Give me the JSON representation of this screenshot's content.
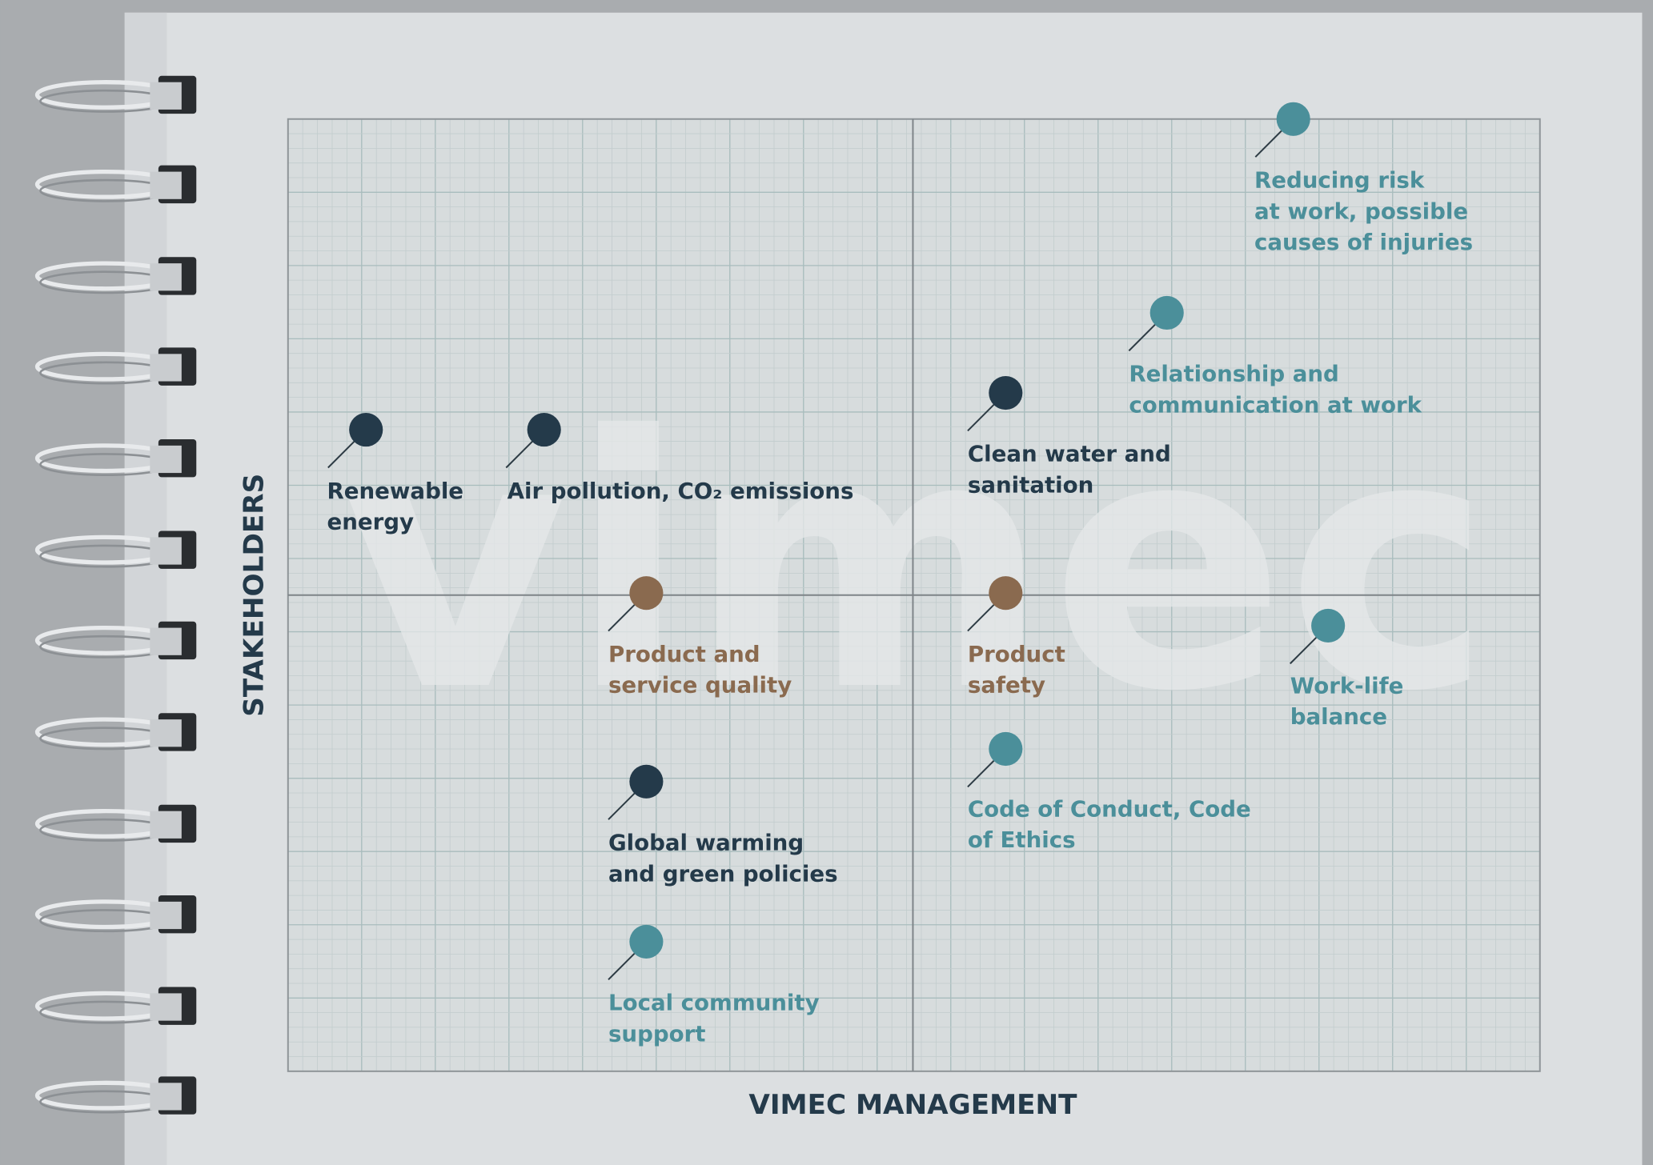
{
  "watermark": "vimec",
  "x_axis_label": "VIMEC MANAGEMENT",
  "y_axis_label": "STAKEHOLDERS",
  "nodes": [
    {
      "lines": [
        "Renewable",
        "energy"
      ],
      "color": "#243a4a"
    },
    {
      "lines": [
        "Air pollution, CO₂ emissions"
      ],
      "color": "#243a4a"
    },
    {
      "lines": [
        "Clean water and",
        "sanitation"
      ],
      "color": "#243a4a"
    },
    {
      "lines": [
        "Reducing risk",
        "at work, possible",
        "causes of injuries"
      ],
      "color": "#4b8f9a"
    },
    {
      "lines": [
        "Relationship and",
        "communication at work"
      ],
      "color": "#4b8f9a"
    },
    {
      "lines": [
        "Product and",
        "service quality"
      ],
      "color": "#8a6a4f"
    },
    {
      "lines": [
        "Product",
        "safety"
      ],
      "color": "#8a6a4f"
    },
    {
      "lines": [
        "Work-life",
        "balance"
      ],
      "color": "#4b8f9a"
    },
    {
      "lines": [
        "Code of Conduct, Code",
        "of Ethics"
      ],
      "color": "#4b8f9a"
    },
    {
      "lines": [
        "Global warming",
        "and green policies"
      ],
      "color": "#243a4a"
    },
    {
      "lines": [
        "Local community",
        "support"
      ],
      "color": "#4b8f9a"
    }
  ]
}
